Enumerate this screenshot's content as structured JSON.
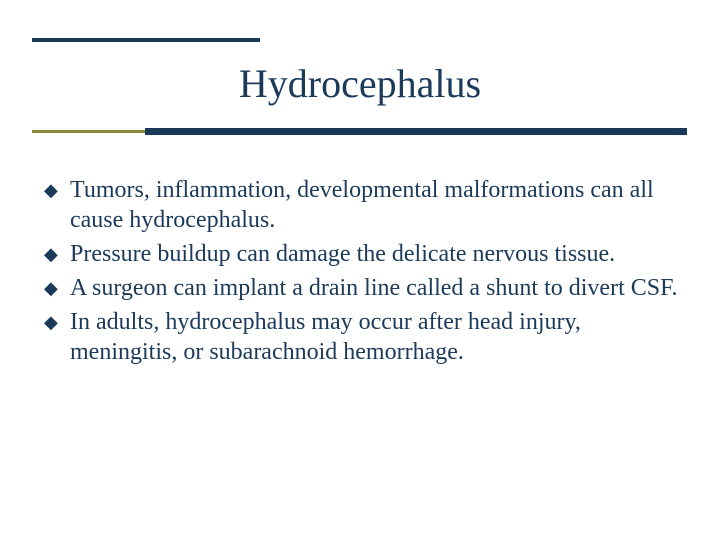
{
  "slide": {
    "title": "Hydrocephalus",
    "title_color": "#1b3a5a",
    "title_fontsize": 40,
    "accent_rule_color": "#1b3a5a",
    "secondary_rule_color": "#8a8a3a",
    "background_color": "#ffffff",
    "body_fontsize": 24,
    "body_color": "#1b3a5a",
    "bullet_glyph": "◆",
    "bullets": [
      "Tumors, inflammation, developmental malformations can all cause hydrocephalus.",
      "Pressure buildup can damage the delicate nervous tissue.",
      "A surgeon can implant a drain line called a shunt to divert CSF.",
      "In adults, hydrocephalus may occur after head injury, meningitis, or subarachnoid hemorrhage."
    ]
  }
}
